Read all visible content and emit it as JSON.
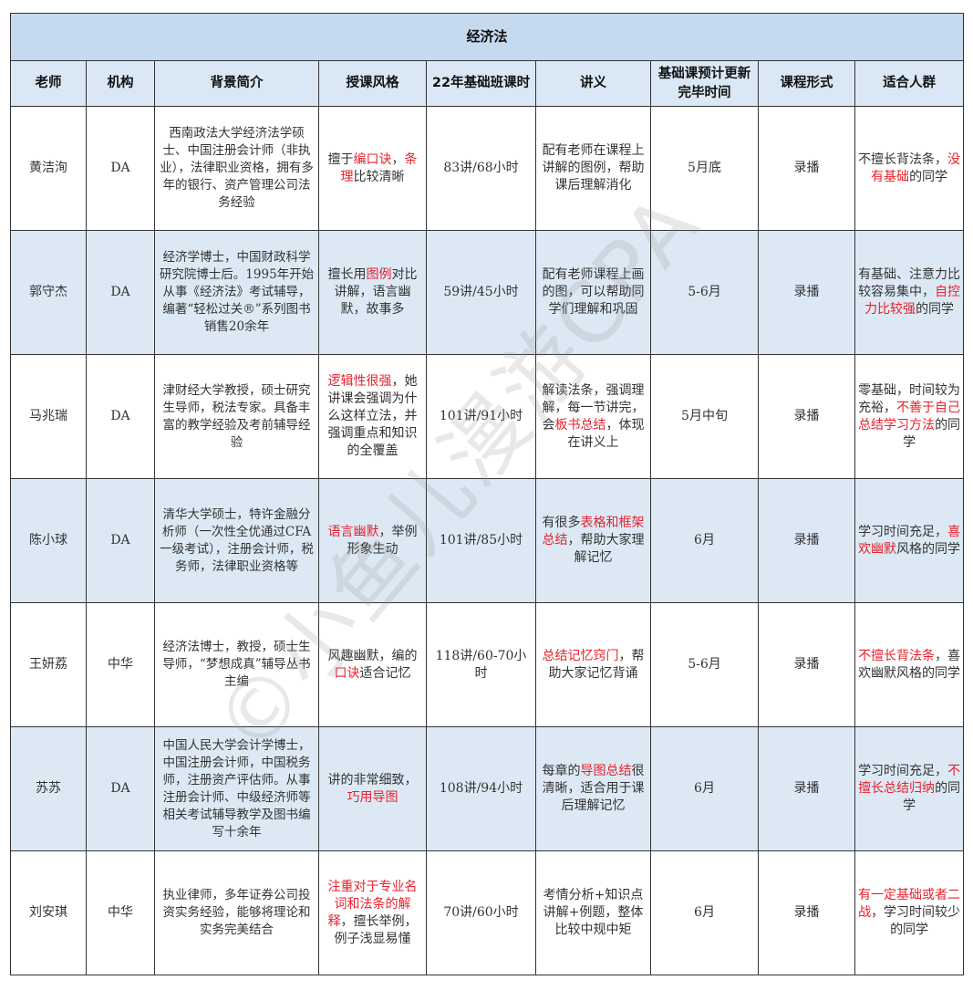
{
  "title": "经济法",
  "headers": [
    "老师",
    "机构",
    "背景简介",
    "授课风格",
    "22年基础班课时",
    "讲义",
    "基础课预计更新完毕时间",
    "课程形式",
    "适合人群"
  ],
  "watermark": "©小鱼儿漫游CPA",
  "accent_red": "#e8212b",
  "rows": [
    {
      "teacher": "黄洁洵",
      "org": "DA",
      "background": "西南政法大学经济法学硕士、中国注册会计师（非执业），法律职业资格，拥有多年的银行、资产管理公司法务经验",
      "style": [
        {
          "t": "擅于"
        },
        {
          "t": "编口诀",
          "red": true
        },
        {
          "t": "，"
        },
        {
          "t": "条理",
          "red": true
        },
        {
          "t": "比较清晰"
        }
      ],
      "hours": "83讲/68小时",
      "notes": [
        {
          "t": "配有老师在课程上讲解的图例，帮助课后理解消化"
        }
      ],
      "finish": "5月底",
      "format": "录播",
      "audience": [
        {
          "t": "不擅长背法条，"
        },
        {
          "t": "没有基础",
          "red": true
        },
        {
          "t": "的同学"
        }
      ]
    },
    {
      "teacher": "郭守杰",
      "org": "DA",
      "background": "经济学博士，中国财政科学研究院博士后。1995年开始从事《经济法》考试辅导，编著“轻松过关®”系列图书销售20余年",
      "style": [
        {
          "t": "擅长用"
        },
        {
          "t": "图例",
          "red": true
        },
        {
          "t": "对比讲解，语言幽默，故事多"
        }
      ],
      "hours": "59讲/45小时",
      "notes": [
        {
          "t": "配有老师课程上画的图，可以帮助同学们理解和巩固"
        }
      ],
      "finish": "5-6月",
      "format": "录播",
      "audience": [
        {
          "t": "有基础、注意力比较容易集中，"
        },
        {
          "t": "自控力比较强",
          "red": true
        },
        {
          "t": "的同学"
        }
      ]
    },
    {
      "teacher": "马兆瑞",
      "org": "DA",
      "background": "津财经大学教授，硕士研究生导师，税法专家。具备丰富的教学经验及考前辅导经验",
      "style": [
        {
          "t": "逻辑性很强",
          "red": true
        },
        {
          "t": "，她讲课会强调为什么这样立法，并强调重点和知识的全覆盖"
        }
      ],
      "hours": "101讲/91小时",
      "notes": [
        {
          "t": "解读法条，强调理解，每一节讲完，会"
        },
        {
          "t": "板书总结",
          "red": true
        },
        {
          "t": "，体现在讲义上"
        }
      ],
      "finish": "5月中旬",
      "format": "录播",
      "audience": [
        {
          "t": "零基础，时间较为充裕，"
        },
        {
          "t": "不善于自己总结学习方法",
          "red": true
        },
        {
          "t": "的同学"
        }
      ]
    },
    {
      "teacher": "陈小球",
      "org": "DA",
      "background": "清华大学硕士，特许金融分析师（一次性全优通过CFA一级考试），注册会计师，税务师，法律职业资格等",
      "style": [
        {
          "t": "语言幽默",
          "red": true
        },
        {
          "t": "，举例形象生动"
        }
      ],
      "hours": "101讲/85小时",
      "notes": [
        {
          "t": "有很多"
        },
        {
          "t": "表格和框架总结",
          "red": true
        },
        {
          "t": "，帮助大家理解记忆"
        }
      ],
      "finish": "6月",
      "format": "录播",
      "audience": [
        {
          "t": "学习时间充足，"
        },
        {
          "t": "喜欢幽默",
          "red": true
        },
        {
          "t": "风格的同学"
        }
      ]
    },
    {
      "teacher": "王妍荔",
      "org": "中华",
      "background": "经济法博士，教授，硕士生导师，“梦想成真”辅导丛书主编",
      "style": [
        {
          "t": "风趣幽默，编的"
        },
        {
          "t": "口诀",
          "red": true
        },
        {
          "t": "适合记忆"
        }
      ],
      "hours": "118讲/60-70小时",
      "notes": [
        {
          "t": "总结记忆窍门",
          "red": true
        },
        {
          "t": "，帮助大家记忆背诵"
        }
      ],
      "finish": "5-6月",
      "format": "录播",
      "audience": [
        {
          "t": "不擅长背法条",
          "red": true
        },
        {
          "t": "，喜欢幽默风格的同学"
        }
      ]
    },
    {
      "teacher": "苏苏",
      "org": "DA",
      "background": "中国人民大学会计学博士，中国注册会计师，中国税务师，注册资产评估师。从事注册会计师、中级经济师等相关考试辅导教学及图书编写十余年",
      "style": [
        {
          "t": "讲的非常细致，"
        },
        {
          "t": "巧用导图",
          "red": true
        }
      ],
      "hours": "108讲/94小时",
      "notes": [
        {
          "t": "每章的"
        },
        {
          "t": "导图总结",
          "red": true
        },
        {
          "t": "很清晰，适合用于课后理解记忆"
        }
      ],
      "finish": "6月",
      "format": "录播",
      "audience": [
        {
          "t": "学习时间充足，"
        },
        {
          "t": "不擅长总结归纳",
          "red": true
        },
        {
          "t": "的同学"
        }
      ]
    },
    {
      "teacher": "刘安琪",
      "org": "中华",
      "background": "执业律师，多年证券公司投资实务经验，能够将理论和实务完美结合",
      "style": [
        {
          "t": "注重对于专业名词和法条的解释",
          "red": true
        },
        {
          "t": "，擅长举例，例子浅显易懂"
        }
      ],
      "hours": "70讲/60小时",
      "notes": [
        {
          "t": "考情分析+知识点讲解+例题，整体比较中规中矩"
        }
      ],
      "finish": "6月",
      "format": "录播",
      "audience": [
        {
          "t": "有一定基础或者二战",
          "red": true
        },
        {
          "t": "，学习时间较少的同学"
        }
      ]
    }
  ]
}
